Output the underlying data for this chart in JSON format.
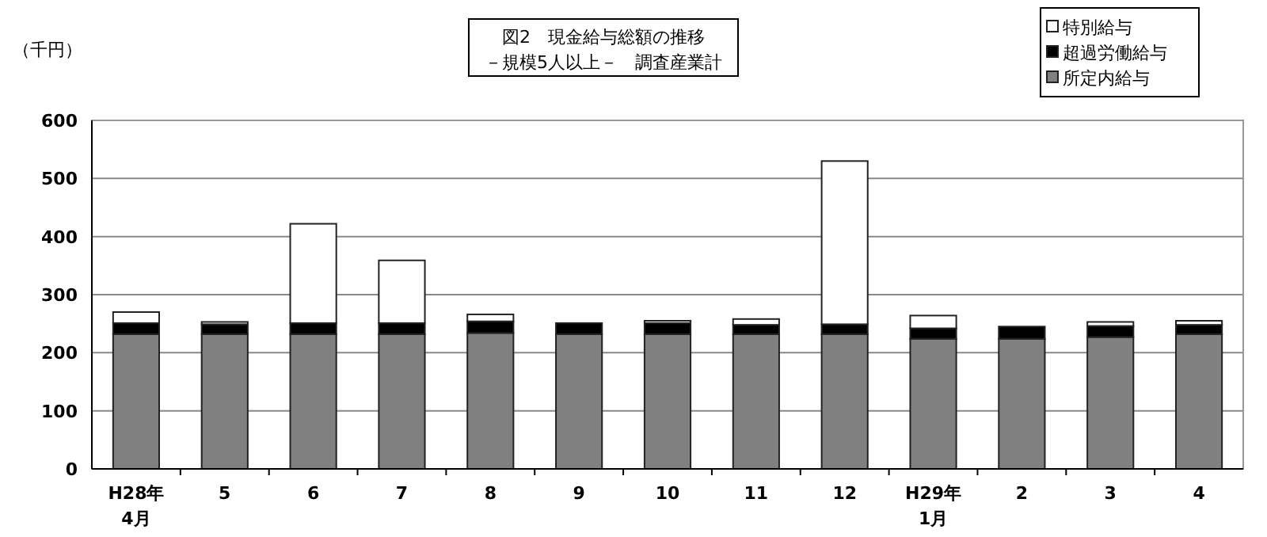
{
  "chart_data": {
    "type": "bar",
    "title": "図2　現金給与総額の推移",
    "subtitle": "－規模5人以上－　調査産業計",
    "ylabel": "（千円）",
    "categories": [
      "H28年\n4月",
      "5",
      "6",
      "7",
      "8",
      "9",
      "10",
      "11",
      "12",
      "H29年\n1月",
      "2",
      "3",
      "4"
    ],
    "stacked": true,
    "ylim": [
      0,
      600
    ],
    "yticks": [
      0,
      100,
      200,
      300,
      400,
      500,
      600
    ],
    "grid": "y",
    "legend": "top right",
    "series": [
      {
        "name": "所定内給与",
        "color": "#808080",
        "values": [
          232,
          232,
          232,
          232,
          234,
          232,
          232,
          232,
          232,
          224,
          224,
          227,
          232
        ]
      },
      {
        "name": "超過労働給与",
        "color": "#000000",
        "values": [
          19,
          17,
          19,
          19,
          20,
          19,
          19,
          16,
          17,
          18,
          21,
          19,
          16
        ]
      },
      {
        "name": "特別給与",
        "color": "#ffffff",
        "values": [
          19,
          4,
          171,
          108,
          12,
          0,
          4,
          10,
          281,
          22,
          0,
          7,
          7
        ]
      }
    ]
  }
}
